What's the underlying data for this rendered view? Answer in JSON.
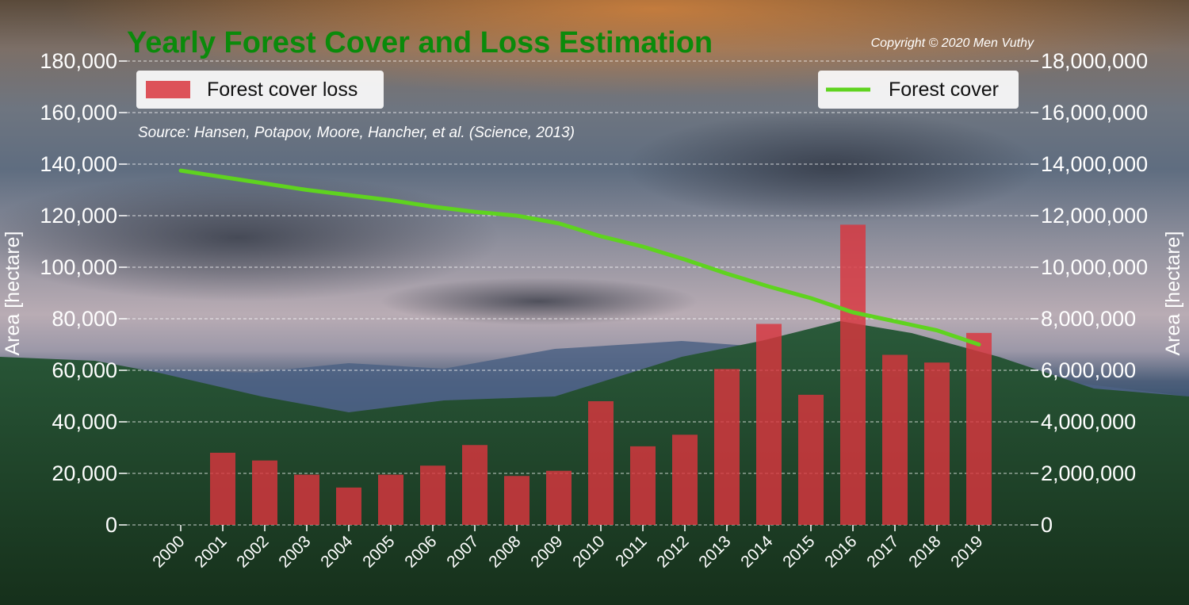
{
  "chart_data": {
    "type": "bar+line",
    "title": "Yearly Forest Cover and Loss Estimation",
    "copyright": "Copyright © 2020 Men Vuthy",
    "source": "Source: Hansen, Potapov, Moore, Hancher, et al. (Science, 2013)",
    "categories": [
      "2000",
      "2001",
      "2002",
      "2003",
      "2004",
      "2005",
      "2006",
      "2007",
      "2008",
      "2009",
      "2010",
      "2011",
      "2012",
      "2013",
      "2014",
      "2015",
      "2016",
      "2017",
      "2018",
      "2019"
    ],
    "left_axis": {
      "label": "Area [hectare]",
      "ylim": [
        0,
        180000
      ],
      "ticks": [
        "0",
        "20,000",
        "40,000",
        "60,000",
        "80,000",
        "100,000",
        "120,000",
        "140,000",
        "160,000",
        "180,000"
      ]
    },
    "right_axis": {
      "label": "Area [hectare]",
      "ylim": [
        0,
        18000000
      ],
      "ticks": [
        "0",
        "2,000,000",
        "4,000,000",
        "6,000,000",
        "8,000,000",
        "10,000,000",
        "12,000,000",
        "14,000,000",
        "16,000,000",
        "18,000,000"
      ]
    },
    "series": [
      {
        "name": "Forest cover loss",
        "type": "bar",
        "axis": "left",
        "color": "#d9363e",
        "values": [
          0,
          28000,
          25000,
          19500,
          14500,
          19500,
          23000,
          31000,
          19000,
          21000,
          48000,
          30500,
          35000,
          60500,
          78000,
          50500,
          116500,
          66000,
          63000,
          74500
        ]
      },
      {
        "name": "Forest cover",
        "type": "line",
        "axis": "right",
        "color": "#5fd31f",
        "values": [
          13750000,
          13500000,
          13250000,
          13000000,
          12800000,
          12600000,
          12350000,
          12150000,
          12000000,
          11700000,
          11200000,
          10800000,
          10300000,
          9750000,
          9250000,
          8800000,
          8250000,
          7900000,
          7550000,
          7000000
        ]
      }
    ],
    "grid": "horizontal dashed",
    "legend": {
      "bar": "top-left",
      "line": "top-right"
    }
  }
}
